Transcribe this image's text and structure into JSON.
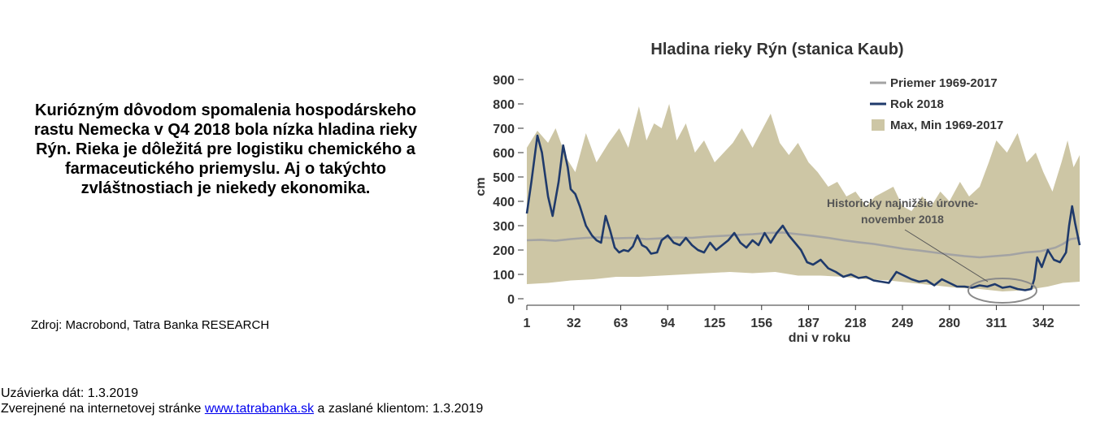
{
  "caption": "Kuriózným dôvodom spomalenia hospodárskeho rastu Nemecka v Q4 2018 bola nízka hladina rieky Rýn. Rieka je dôležitá pre logistiku chemického a farmaceutického priemyslu. Aj o takýchto zvláštnostiach je niekedy ekonomika.",
  "source": "Zdroj: Macrobond, Tatra Banka RESEARCH",
  "footer": {
    "deadline": "Uzávierka dát: 1.3.2019",
    "published_prefix": "Zverejnené na internetovej stránke ",
    "link_text": "www.tatrabanka.sk",
    "published_suffix": " a zaslané klientom: 1.3.2019"
  },
  "colors": {
    "band": "#cdc6a5",
    "average": "#a3a3a3",
    "year2018": "#1f3a6b",
    "ellipse": "#8a8a8a"
  },
  "chart_data": {
    "type": "line",
    "title": "Hladina rieky Rýn (stanica Kaub)",
    "xlabel": "dni v roku",
    "ylabel": "cm",
    "xlim": [
      1,
      366
    ],
    "ylim": [
      0,
      900
    ],
    "xticks": [
      1,
      32,
      63,
      94,
      125,
      156,
      187,
      218,
      249,
      280,
      311,
      342
    ],
    "yticks": [
      0,
      100,
      200,
      300,
      400,
      500,
      600,
      700,
      800,
      900
    ],
    "legend_position": "top-right",
    "legend": [
      "Priemer 1969-2017",
      "Rok 2018",
      "Max, Min 1969-2017"
    ],
    "annotation": {
      "lines": [
        "Historicky najnižšie úrovne-",
        "november 2018"
      ],
      "target_x": 315,
      "target_y": 40
    },
    "band_max": {
      "name": "Max, Min 1969-2017",
      "x": [
        1,
        8,
        15,
        20,
        27,
        33,
        40,
        47,
        55,
        62,
        68,
        75,
        80,
        85,
        90,
        95,
        100,
        106,
        112,
        118,
        125,
        131,
        137,
        143,
        150,
        156,
        162,
        168,
        174,
        180,
        187,
        193,
        200,
        206,
        212,
        218,
        225,
        231,
        237,
        243,
        249,
        255,
        262,
        268,
        274,
        280,
        287,
        293,
        300,
        306,
        311,
        318,
        325,
        331,
        337,
        342,
        348,
        354,
        358,
        362,
        366
      ],
      "values": [
        620,
        690,
        640,
        700,
        580,
        520,
        680,
        560,
        640,
        700,
        620,
        790,
        650,
        720,
        700,
        800,
        650,
        720,
        600,
        650,
        560,
        600,
        640,
        700,
        620,
        690,
        760,
        640,
        590,
        640,
        560,
        520,
        460,
        480,
        420,
        440,
        380,
        420,
        440,
        460,
        380,
        360,
        420,
        380,
        440,
        400,
        480,
        420,
        460,
        560,
        650,
        600,
        680,
        560,
        600,
        520,
        440,
        560,
        650,
        540,
        590
      ]
    },
    "band_min": {
      "name": "Max, Min 1969-2017",
      "x": [
        1,
        15,
        30,
        45,
        60,
        75,
        90,
        105,
        120,
        135,
        150,
        165,
        180,
        195,
        210,
        225,
        240,
        255,
        270,
        285,
        300,
        315,
        330,
        345,
        355,
        366
      ],
      "values": [
        60,
        65,
        75,
        80,
        90,
        90,
        95,
        100,
        105,
        110,
        105,
        110,
        95,
        95,
        90,
        80,
        75,
        65,
        55,
        45,
        40,
        30,
        35,
        50,
        65,
        70
      ]
    },
    "series": [
      {
        "name": "Priemer 1969-2017",
        "x": [
          1,
          10,
          20,
          30,
          40,
          50,
          60,
          70,
          80,
          90,
          100,
          110,
          120,
          130,
          140,
          150,
          160,
          170,
          180,
          190,
          200,
          210,
          220,
          230,
          240,
          250,
          260,
          270,
          280,
          290,
          300,
          310,
          320,
          330,
          340,
          350,
          355,
          360,
          366
        ],
        "values": [
          240,
          242,
          238,
          245,
          250,
          252,
          248,
          250,
          245,
          248,
          252,
          250,
          255,
          258,
          262,
          265,
          270,
          272,
          265,
          258,
          250,
          240,
          232,
          225,
          215,
          205,
          198,
          190,
          182,
          175,
          170,
          175,
          180,
          190,
          195,
          210,
          225,
          245,
          250
        ]
      },
      {
        "name": "Rok 2018",
        "x": [
          1,
          4,
          8,
          11,
          15,
          18,
          22,
          25,
          28,
          30,
          33,
          36,
          40,
          44,
          47,
          50,
          53,
          56,
          59,
          62,
          65,
          68,
          71,
          74,
          77,
          80,
          83,
          87,
          90,
          94,
          98,
          102,
          106,
          110,
          114,
          118,
          122,
          126,
          130,
          134,
          138,
          142,
          146,
          150,
          154,
          158,
          162,
          166,
          170,
          174,
          178,
          182,
          186,
          190,
          195,
          200,
          205,
          210,
          215,
          220,
          225,
          230,
          235,
          240,
          245,
          250,
          255,
          260,
          265,
          270,
          275,
          280,
          285,
          290,
          295,
          300,
          305,
          310,
          315,
          320,
          325,
          330,
          334,
          336,
          338,
          341,
          345,
          349,
          353,
          357,
          359,
          361,
          363,
          366
        ],
        "values": [
          350,
          480,
          670,
          600,
          420,
          340,
          480,
          630,
          540,
          450,
          430,
          380,
          300,
          260,
          240,
          230,
          340,
          280,
          210,
          190,
          200,
          195,
          215,
          260,
          220,
          210,
          185,
          190,
          240,
          260,
          230,
          220,
          250,
          220,
          200,
          190,
          230,
          200,
          220,
          240,
          270,
          230,
          210,
          240,
          220,
          270,
          230,
          270,
          300,
          260,
          230,
          200,
          150,
          140,
          160,
          125,
          110,
          90,
          100,
          85,
          90,
          75,
          70,
          65,
          110,
          95,
          80,
          70,
          75,
          55,
          80,
          65,
          50,
          50,
          45,
          55,
          50,
          60,
          45,
          50,
          40,
          35,
          40,
          80,
          170,
          130,
          200,
          160,
          150,
          190,
          300,
          380,
          310,
          220
        ]
      }
    ]
  }
}
